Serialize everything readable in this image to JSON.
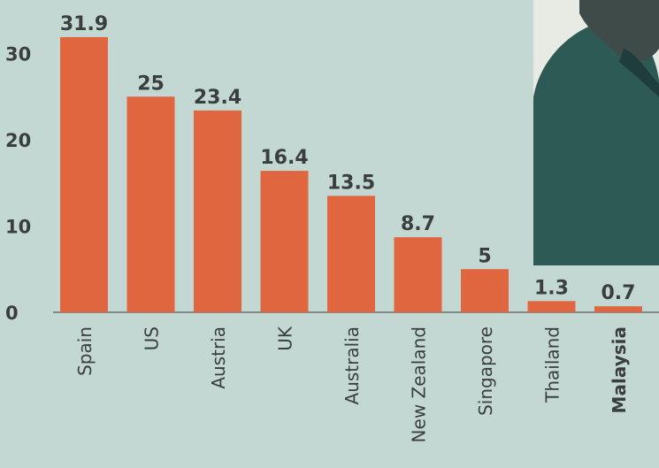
{
  "chart_data": {
    "type": "bar",
    "categories": [
      "Spain",
      "US",
      "Austria",
      "UK",
      "Australia",
      "New Zealand",
      "Singapore",
      "Thailand",
      "Malaysia"
    ],
    "values": [
      31.9,
      25,
      23.4,
      16.4,
      13.5,
      8.7,
      5,
      1.3,
      0.7
    ],
    "value_labels": [
      "31.9",
      "25",
      "23.4",
      "16.4",
      "13.5",
      "8.7",
      "5",
      "1.3",
      "0.7"
    ],
    "y_ticks": [
      0,
      10,
      20,
      30
    ],
    "ylim": [
      0,
      32
    ],
    "title": "",
    "xlabel": "",
    "ylabel": "",
    "grid": false,
    "colors": {
      "bar": "#e0663f",
      "background": "#c3d8d2",
      "text": "#3a3f3e",
      "axis": "#6b6f6d",
      "photo_bg": "#e8ebe4",
      "photo_figure": "#2e5a55"
    }
  }
}
